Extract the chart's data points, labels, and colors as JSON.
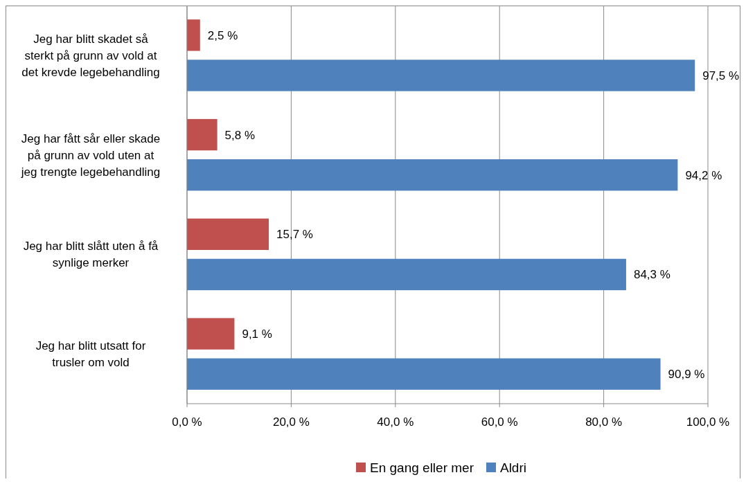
{
  "chart_data": {
    "type": "bar",
    "orientation": "horizontal",
    "categories": [
      "Jeg har blitt skadet så sterkt på grunn av vold at det krevde legebehandling",
      "Jeg har fått sår eller skade på grunn av vold uten at jeg trengte legebehandling",
      "Jeg har blitt slått uten å få synlige merker",
      "Jeg har blitt utsatt for trusler om vold"
    ],
    "series": [
      {
        "name": "En gang eller mer",
        "color": "#c0504d",
        "values": [
          2.5,
          5.8,
          15.7,
          9.1
        ],
        "value_labels": [
          "2,5 %",
          "5,8 %",
          "15,7 %",
          "9,1 %"
        ]
      },
      {
        "name": "Aldri",
        "color": "#4f81bd",
        "values": [
          97.5,
          94.2,
          84.3,
          90.9
        ],
        "value_labels": [
          "97,5 %",
          "94,2 %",
          "84,3 %",
          "90,9 %"
        ]
      }
    ],
    "xlim": [
      0,
      100
    ],
    "xticks": [
      {
        "value": 0,
        "label": "0,0 %"
      },
      {
        "value": 20,
        "label": "20,0 %"
      },
      {
        "value": 40,
        "label": "40,0 %"
      },
      {
        "value": 60,
        "label": "60,0 %"
      },
      {
        "value": 80,
        "label": "80,0 %"
      },
      {
        "value": 100,
        "label": "100,0 %"
      }
    ],
    "grid": "x",
    "legend": "bottom"
  }
}
